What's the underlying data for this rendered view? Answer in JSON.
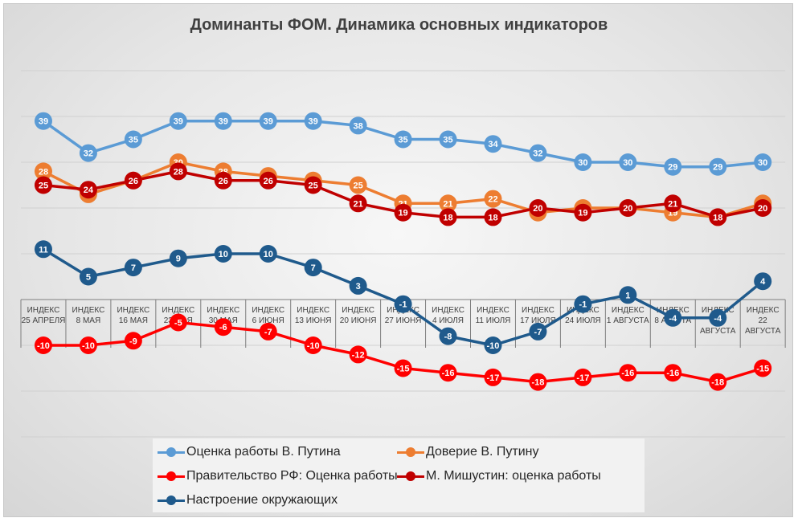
{
  "chart_data": {
    "type": "line",
    "title": "Доминанты ФОМ. Динамика основных индикаторов",
    "categories": [
      [
        "ИНДЕКС",
        "25 АПРЕЛЯ"
      ],
      [
        "ИНДЕКС",
        "8 МАЯ"
      ],
      [
        "ИНДЕКС",
        "16 МАЯ"
      ],
      [
        "ИНДЕКС",
        "23 МАЯ"
      ],
      [
        "ИНДЕКС",
        "30 МАЯ"
      ],
      [
        "ИНДЕКС",
        "6 ИЮНЯ"
      ],
      [
        "ИНДЕКС",
        "13 ИЮНЯ"
      ],
      [
        "ИНДЕКС",
        "20 ИЮНЯ"
      ],
      [
        "ИНДЕКС",
        "27 ИЮНЯ"
      ],
      [
        "ИНДЕКС",
        "4 ИЮЛЯ"
      ],
      [
        "ИНДЕКС",
        "11 ИЮЛЯ"
      ],
      [
        "ИНДЕКС",
        "17 ИЮЛЯ"
      ],
      [
        "ИНДЕКС",
        "24 ИЮЛЯ"
      ],
      [
        "ИНДЕКС",
        "1 АВГУСТА"
      ],
      [
        "ИНДЕКС",
        "8 АВГУТА"
      ],
      [
        "ИНДЕКС",
        "15",
        "АВГУСТА"
      ],
      [
        "ИНДЕКС",
        "22",
        "АВГУСТА"
      ]
    ],
    "ylim": [
      -30,
      50
    ],
    "grid": true,
    "legend_position": "bottom",
    "series": [
      {
        "name": "Оценка работы В. Путина",
        "color": "#5b9bd5",
        "values": [
          39,
          32,
          35,
          39,
          39,
          39,
          39,
          38,
          35,
          35,
          34,
          32,
          30,
          30,
          29,
          29,
          30
        ]
      },
      {
        "name": "Доверие В. Путину",
        "color": "#ed7d31",
        "values": [
          28,
          23,
          26,
          30,
          28,
          27,
          26,
          25,
          21,
          21,
          22,
          19,
          20,
          20,
          19,
          18,
          21
        ]
      },
      {
        "name": "Правительство РФ: Оценка работы",
        "color": "#ff0000",
        "values": [
          -10,
          -10,
          -9,
          -5,
          -6,
          -7,
          -10,
          -12,
          -15,
          -16,
          -17,
          -18,
          -17,
          -16,
          -16,
          -18,
          -15
        ]
      },
      {
        "name": "М. Мишустин: оценка работы",
        "color": "#c00000",
        "values": [
          25,
          24,
          26,
          28,
          26,
          26,
          25,
          21,
          19,
          18,
          18,
          20,
          19,
          20,
          21,
          18,
          20
        ]
      },
      {
        "name": "Настроение окружающих",
        "color": "#1f5a8c",
        "values": [
          11,
          5,
          7,
          9,
          10,
          10,
          7,
          3,
          -1,
          -8,
          -10,
          -7,
          -1,
          1,
          -4,
          -4,
          4
        ]
      }
    ]
  }
}
